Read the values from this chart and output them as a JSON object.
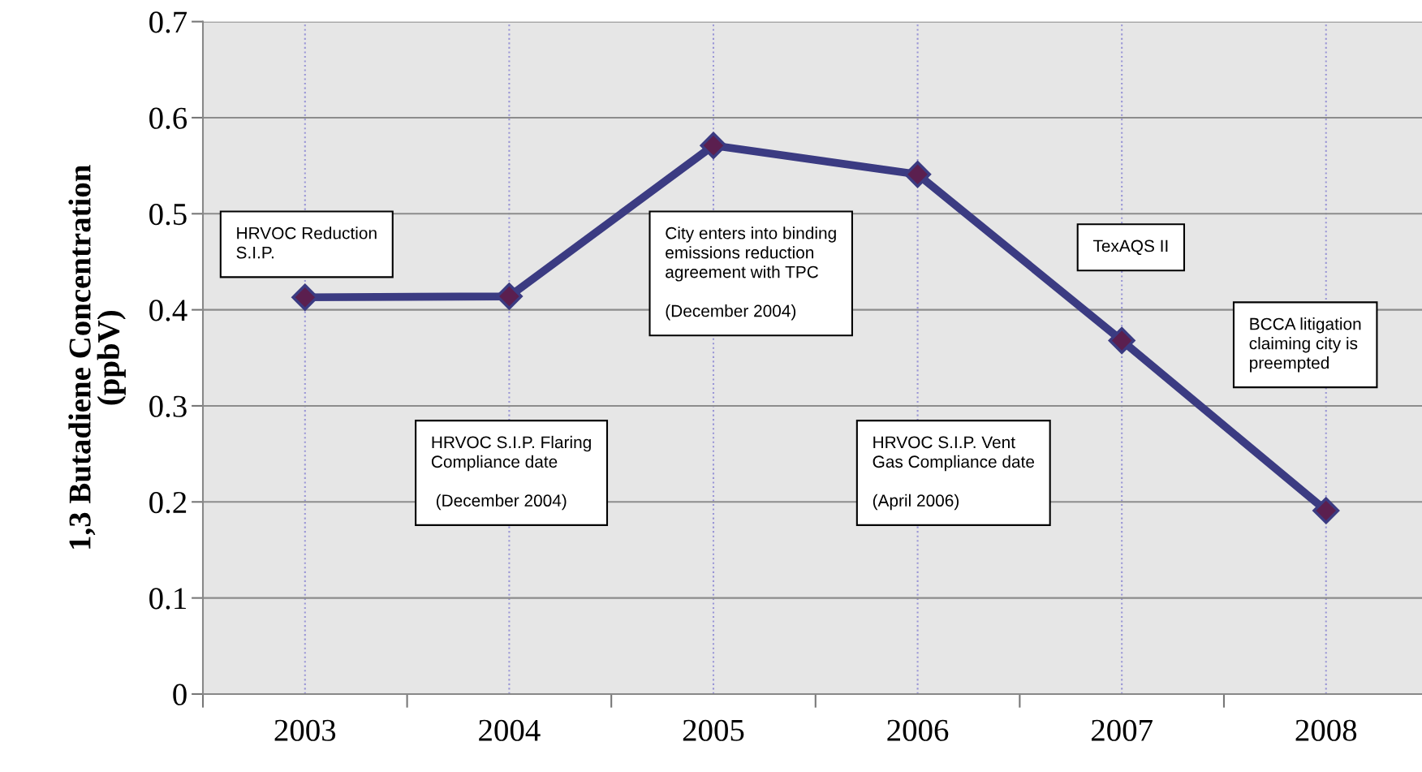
{
  "chart_data": {
    "type": "line",
    "ylabel": "1,3 Butadiene Concentration\n(ppbV)",
    "categories": [
      "2003",
      "2004",
      "2005",
      "2006",
      "2007",
      "2008"
    ],
    "series": [
      {
        "color": "#3b3b82",
        "values": [
          0.413,
          0.414,
          0.571,
          0.541,
          0.368,
          0.191
        ]
      }
    ],
    "marker": "diamond",
    "line_style": "solid",
    "ylim": [
      0,
      0.7
    ],
    "yticks": [
      0,
      0.1,
      0.2,
      0.3,
      0.4,
      0.5,
      0.6,
      0.7
    ],
    "grid": true,
    "annotations": [
      "HRVOC Reduction\nS.I.P.",
      "HRVOC S.I.P. Flaring\nCompliance date\n\n (December 2004)",
      "City enters into binding\nemissions reduction\nagreement with TPC\n\n(December 2004)",
      "HRVOC S.I.P. Vent\nGas Compliance date\n\n(April 2006)",
      "TexAQS II",
      "BCCA litigation\nclaiming city is\npreempted"
    ]
  }
}
